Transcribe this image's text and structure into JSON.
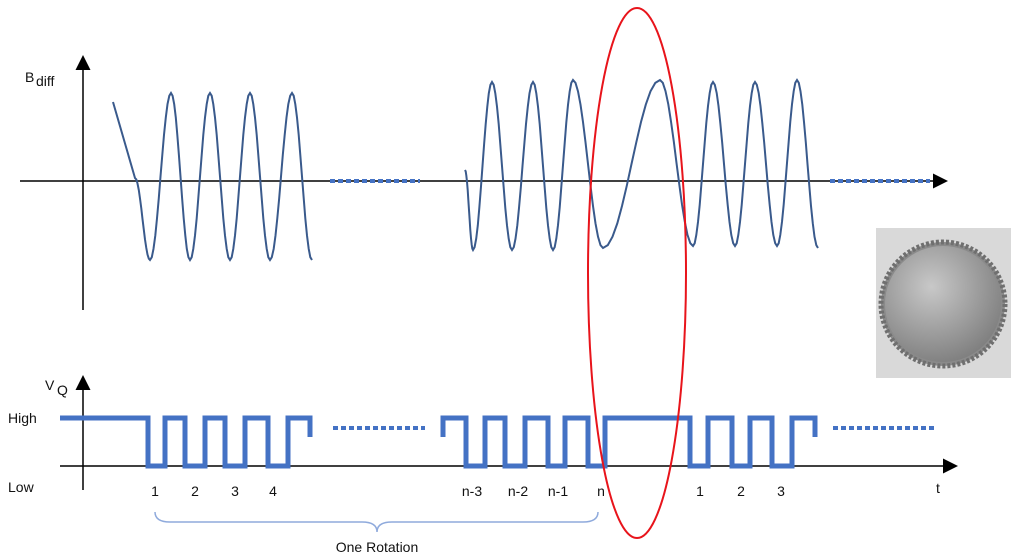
{
  "top_axis": {
    "label": "B",
    "subscript": "diff"
  },
  "bottom_axis": {
    "label": "V",
    "subscript": "Q",
    "high": "High",
    "low": "Low",
    "time": "t"
  },
  "pulse_labels": [
    "1",
    "2",
    "3",
    "4",
    "n-3",
    "n-2",
    "n-1",
    "n",
    "1",
    "2",
    "3"
  ],
  "brace_label": "One Rotation"
}
